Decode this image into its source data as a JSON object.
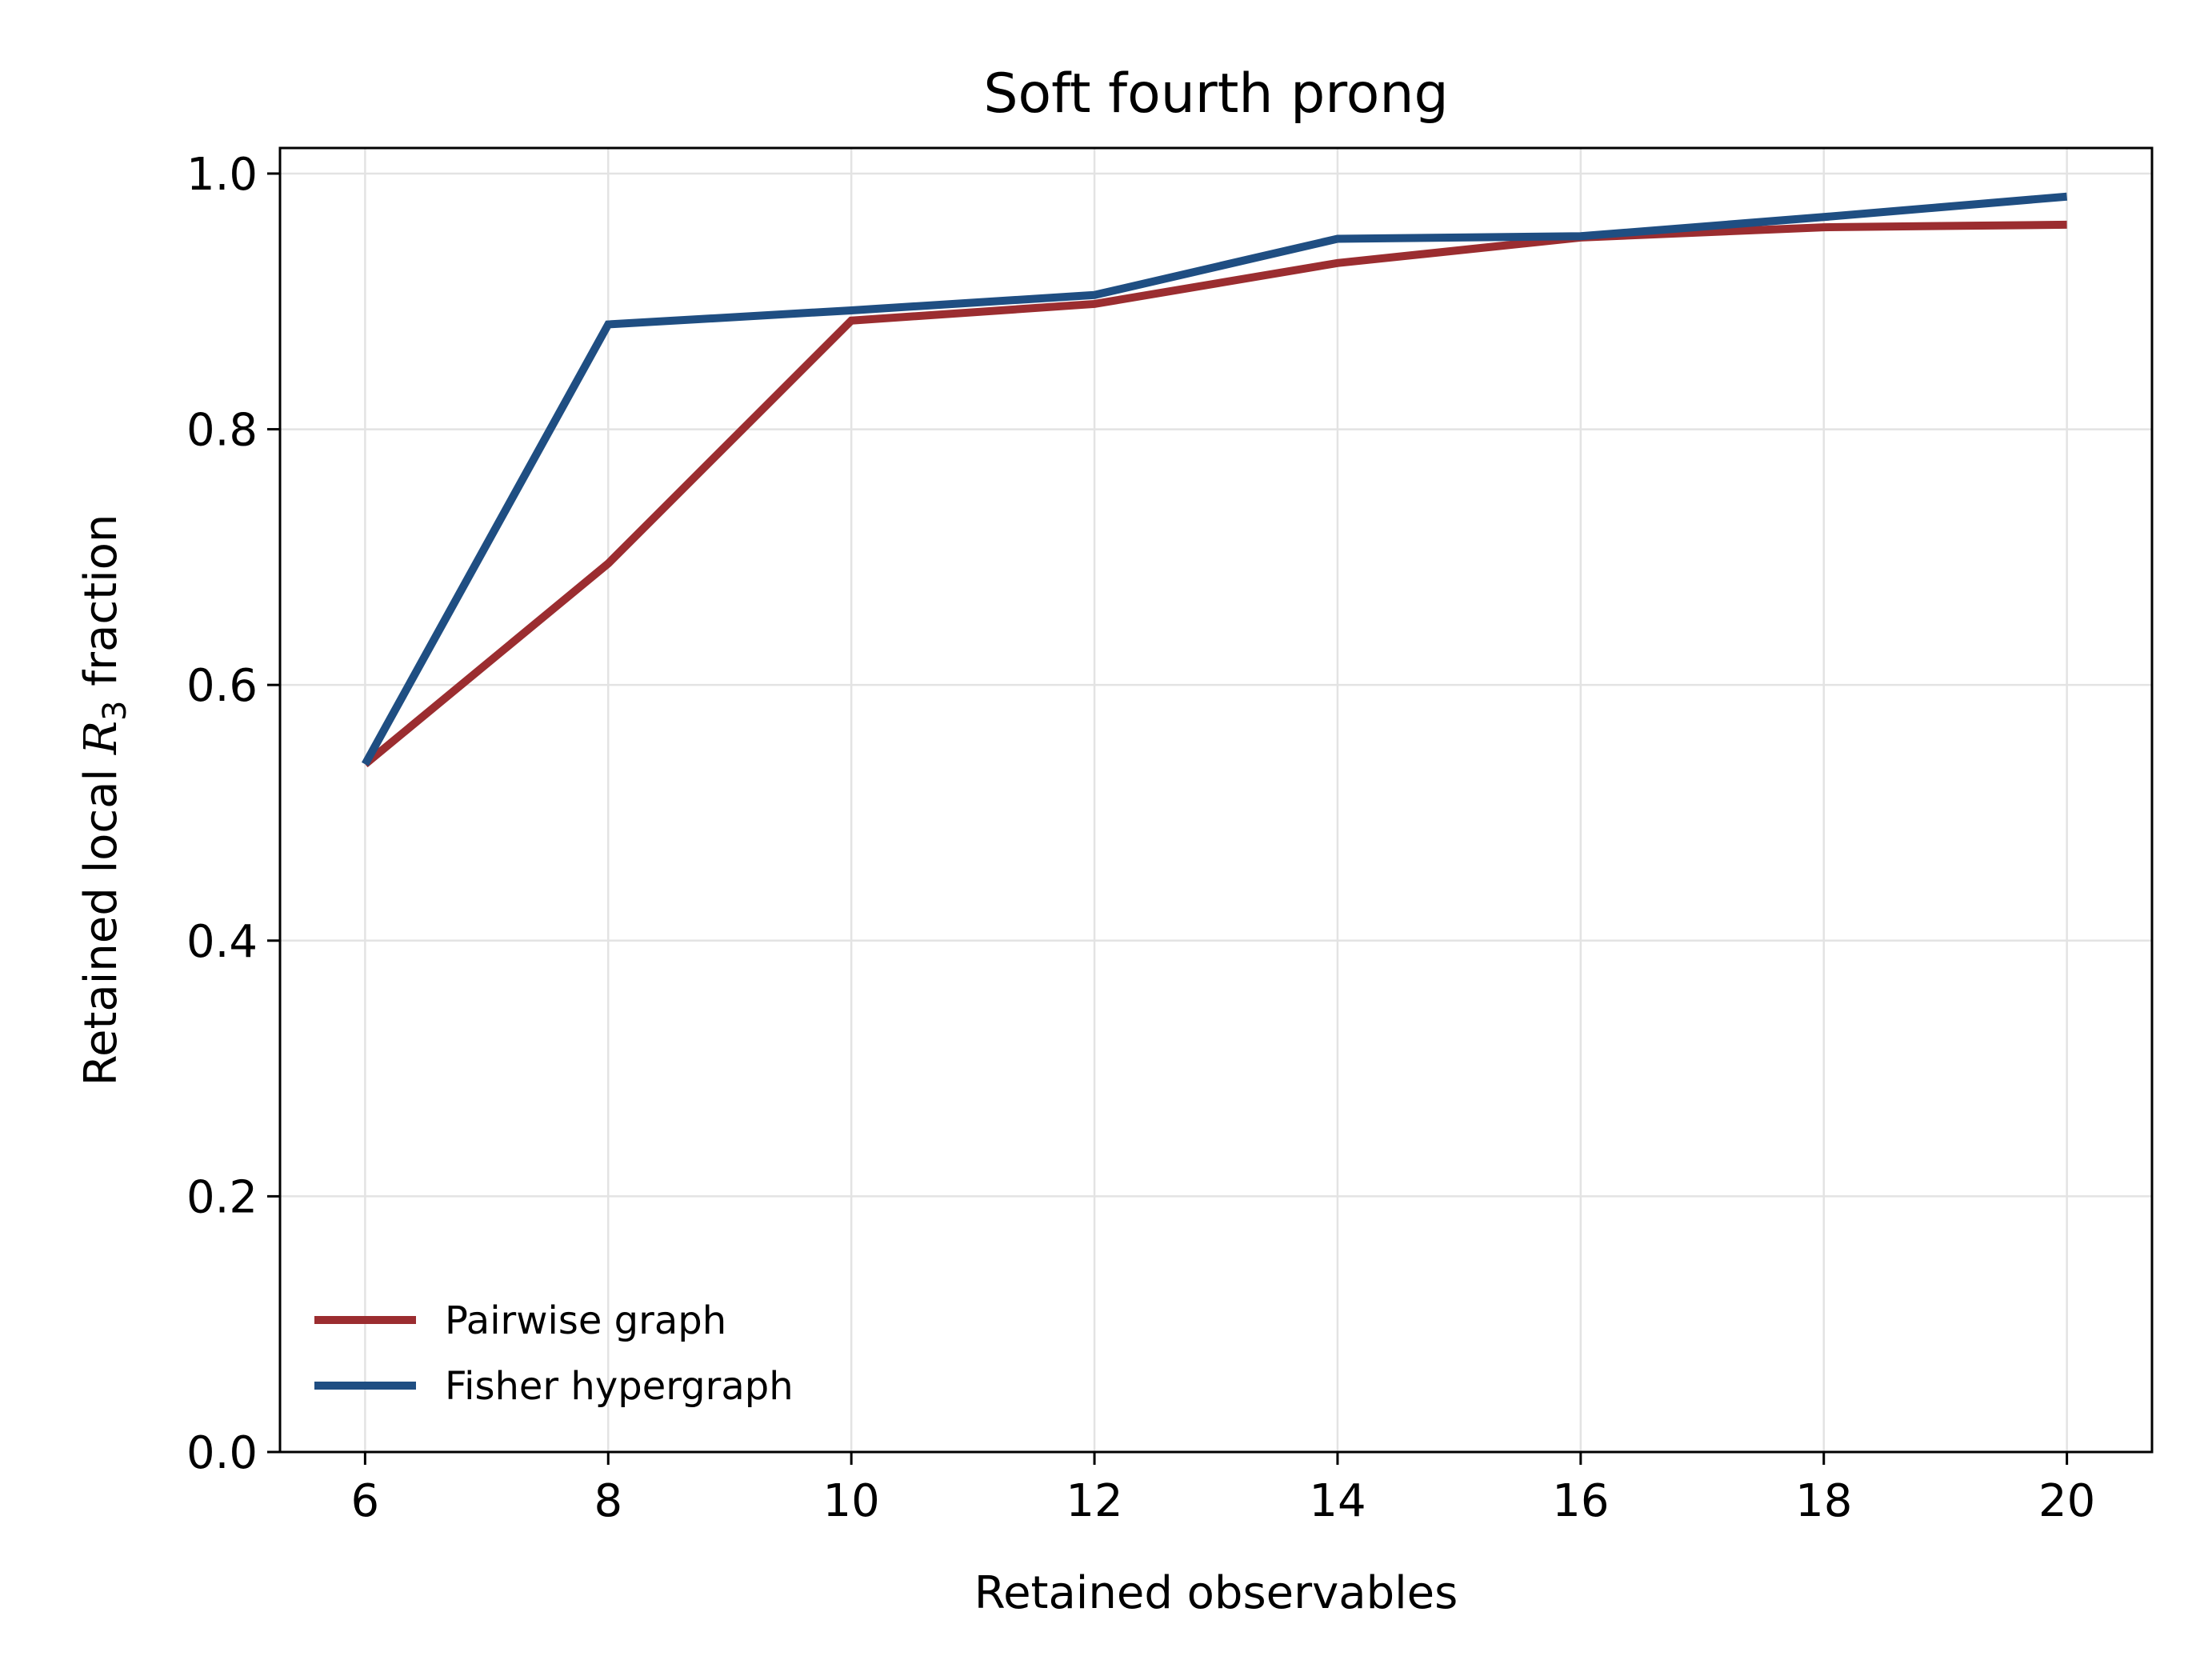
{
  "chart_data": {
    "type": "line",
    "title": "Soft fourth prong",
    "xlabel": "Retained observables",
    "ylabel": {
      "prefix": "Retained local ",
      "symbol": "R",
      "subscript": "3",
      "suffix": " fraction"
    },
    "x": [
      6,
      8,
      10,
      12,
      14,
      16,
      18,
      20
    ],
    "xlim": [
      5.3,
      20.7
    ],
    "ylim": [
      0.0,
      1.02
    ],
    "xticks": [
      "6",
      "8",
      "10",
      "12",
      "14",
      "16",
      "18",
      "20"
    ],
    "yticks": [
      "0.0",
      "0.2",
      "0.4",
      "0.6",
      "0.8",
      "1.0"
    ],
    "grid": true,
    "legend_position": "lower-left",
    "series": [
      {
        "name": "Pairwise graph",
        "color": "#9b2d30",
        "values": [
          0.538,
          0.695,
          0.885,
          0.898,
          0.93,
          0.95,
          0.958,
          0.96
        ]
      },
      {
        "name": "Fisher hypergraph",
        "color": "#1f4e82",
        "values": [
          0.538,
          0.882,
          0.893,
          0.905,
          0.949,
          0.951,
          0.966,
          0.982
        ]
      }
    ]
  }
}
